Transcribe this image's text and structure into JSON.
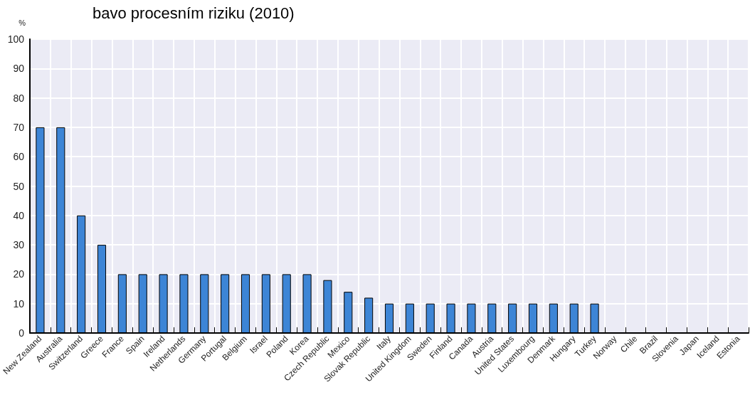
{
  "chart_data": {
    "type": "bar",
    "title": "bavo procesním riziku (2010)",
    "ylabel": "%",
    "categories": [
      "New Zealand",
      "Australia",
      "Switzerland",
      "Greece",
      "France",
      "Spain",
      "Ireland",
      "Netherlands",
      "Germany",
      "Portugal",
      "Belgium",
      "Israel",
      "Poland",
      "Korea",
      "Czech Republic",
      "Mexico",
      "Slovak Republic",
      "Italy",
      "United Kingdom",
      "Sweden",
      "Finland",
      "Canada",
      "Austria",
      "United States",
      "Luxembourg",
      "Denmark",
      "Hungary",
      "Turkey",
      "Norway",
      "Chile",
      "Brazil",
      "Slovenia",
      "Japan",
      "Iceland",
      "Estonia"
    ],
    "values": [
      70,
      70,
      40,
      30,
      20,
      20,
      20,
      20,
      20,
      20,
      20,
      20,
      20,
      20,
      18,
      14,
      12,
      10,
      10,
      10,
      10,
      10,
      10,
      10,
      10,
      10,
      10,
      10,
      0,
      0,
      0,
      0,
      0,
      0,
      0
    ],
    "color": "#3d85d6",
    "ylim": [
      0,
      100
    ],
    "yticks": [
      0,
      10,
      20,
      30,
      40,
      50,
      60,
      70,
      80,
      90,
      100
    ],
    "grid": true
  }
}
